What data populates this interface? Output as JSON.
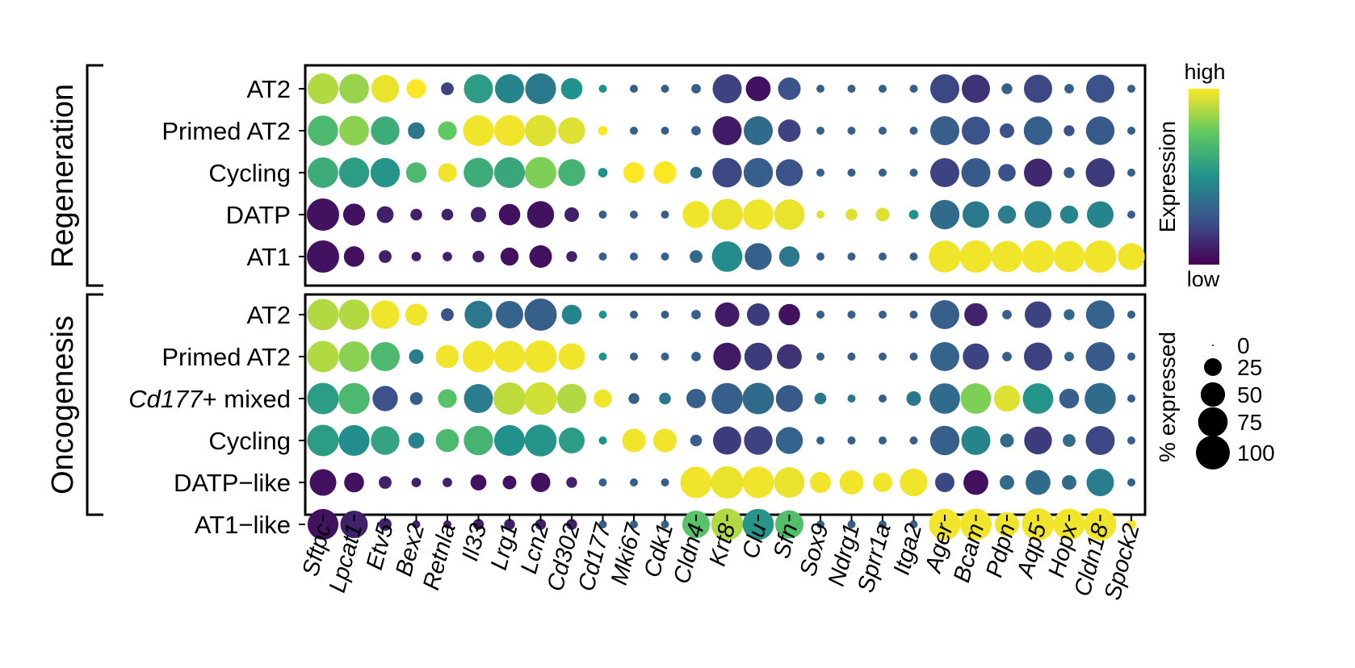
{
  "chart_data": {
    "type": "dot",
    "genes": [
      "Sftpc",
      "Lpcat1",
      "Etv5",
      "Bex2",
      "Retnla",
      "Il33",
      "Lrg1",
      "Lcn2",
      "Cd302",
      "Cd177",
      "Mki67",
      "Cdk1",
      "Cldn4",
      "Krt8",
      "Clu",
      "Sfn",
      "Sox9",
      "Ndrg1",
      "Sprr1a",
      "Itga2",
      "Ager",
      "Bcam",
      "Pdpn",
      "Aqp5",
      "Hopx",
      "Cldn18",
      "Spock2"
    ],
    "panels": [
      {
        "group": "Regeneration",
        "rows": [
          {
            "label": "AT2",
            "expr": [
              0.88,
              0.84,
              0.97,
              1,
              0.2,
              0.55,
              0.45,
              0.4,
              0.5,
              0.5,
              0.3,
              0.3,
              0.3,
              0.2,
              0.05,
              0.25,
              0.3,
              0.3,
              0.3,
              0.3,
              0.22,
              0.15,
              0.3,
              0.22,
              0.3,
              0.25,
              0.3
            ],
            "pct": [
              82,
              76,
              65,
              30,
              12,
              72,
              72,
              82,
              38,
              4,
              4,
              4,
              6,
              72,
              52,
              42,
              4,
              4,
              4,
              4,
              72,
              68,
              8,
              68,
              6,
              68,
              4
            ]
          },
          {
            "label": "Primed AT2",
            "expr": [
              0.68,
              0.82,
              0.62,
              0.4,
              0.75,
              0.98,
              0.98,
              0.95,
              0.95,
              1,
              0.3,
              0.3,
              0.3,
              0.08,
              0.35,
              0.2,
              0.3,
              0.3,
              0.3,
              0.3,
              0.3,
              0.25,
              0.25,
              0.3,
              0.25,
              0.28,
              0.3
            ],
            "pct": [
              78,
              76,
              70,
              22,
              28,
              82,
              82,
              86,
              62,
              6,
              4,
              4,
              6,
              72,
              72,
              42,
              4,
              4,
              4,
              4,
              72,
              68,
              16,
              70,
              8,
              70,
              4
            ]
          },
          {
            "label": "Cycling",
            "expr": [
              0.62,
              0.55,
              0.52,
              0.68,
              0.98,
              0.62,
              0.6,
              0.8,
              0.65,
              0.5,
              1,
              1,
              0.35,
              0.22,
              0.3,
              0.25,
              0.3,
              0.3,
              0.3,
              0.3,
              0.2,
              0.28,
              0.25,
              0.12,
              0.3,
              0.18,
              0.3
            ],
            "pct": [
              80,
              78,
              74,
              34,
              28,
              76,
              82,
              86,
              62,
              6,
              36,
              42,
              10,
              74,
              74,
              62,
              4,
              4,
              4,
              4,
              72,
              72,
              24,
              68,
              8,
              72,
              4
            ]
          },
          {
            "label": "DATP",
            "expr": [
              0.05,
              0.05,
              0.1,
              0.1,
              0.1,
              0.1,
              0.05,
              0.05,
              0.1,
              0.3,
              0.3,
              0.3,
              0.98,
              0.97,
              0.98,
              0.97,
              0.95,
              0.95,
              0.95,
              0.5,
              0.35,
              0.4,
              0.42,
              0.42,
              0.45,
              0.45,
              0.3
            ],
            "pct": [
              90,
              40,
              22,
              10,
              10,
              18,
              38,
              62,
              16,
              4,
              4,
              4,
              62,
              86,
              80,
              80,
              4,
              10,
              14,
              6,
              74,
              60,
              26,
              62,
              26,
              60,
              4
            ]
          },
          {
            "label": "AT1",
            "expr": [
              0.05,
              0.05,
              0.1,
              0.1,
              0.1,
              0.1,
              0.05,
              0.05,
              0.1,
              0.3,
              0.3,
              0.3,
              0.35,
              0.48,
              0.3,
              0.4,
              0.3,
              0.3,
              0.3,
              0.3,
              0.98,
              0.98,
              0.98,
              0.98,
              0.98,
              0.98,
              0.98
            ],
            "pct": [
              90,
              34,
              12,
              6,
              6,
              10,
              26,
              42,
              8,
              4,
              4,
              4,
              12,
              80,
              62,
              34,
              4,
              4,
              4,
              4,
              88,
              90,
              84,
              90,
              84,
              90,
              62
            ]
          }
        ]
      },
      {
        "group": "Oncogenesis",
        "rows": [
          {
            "label": "AT2",
            "expr": [
              0.88,
              0.88,
              0.98,
              0.98,
              0.25,
              0.4,
              0.32,
              0.3,
              0.45,
              0.5,
              0.3,
              0.3,
              0.3,
              0.08,
              0.18,
              0.05,
              0.3,
              0.3,
              0.3,
              0.3,
              0.3,
              0.1,
              0.3,
              0.2,
              0.35,
              0.32,
              0.3
            ],
            "pct": [
              86,
              80,
              70,
              40,
              12,
              66,
              64,
              90,
              32,
              4,
              4,
              4,
              6,
              50,
              42,
              38,
              4,
              4,
              4,
              4,
              72,
              44,
              6,
              60,
              8,
              70,
              4
            ]
          },
          {
            "label": "Primed AT2",
            "expr": [
              0.88,
              0.82,
              0.68,
              0.42,
              0.98,
              0.98,
              0.98,
              0.98,
              0.98,
              0.5,
              0.3,
              0.3,
              0.3,
              0.08,
              0.18,
              0.15,
              0.3,
              0.3,
              0.3,
              0.3,
              0.32,
              0.2,
              0.3,
              0.2,
              0.35,
              0.28,
              0.3
            ],
            "pct": [
              86,
              80,
              72,
              16,
              44,
              86,
              86,
              90,
              60,
              4,
              4,
              4,
              6,
              66,
              66,
              52,
              4,
              4,
              4,
              4,
              72,
              58,
              6,
              68,
              6,
              72,
              4
            ]
          },
          {
            "label": "Cd177+ mixed",
            "expr": [
              0.55,
              0.68,
              0.25,
              0.3,
              0.72,
              0.42,
              0.9,
              0.93,
              0.88,
              0.98,
              0.3,
              0.4,
              0.3,
              0.3,
              0.35,
              0.28,
              0.4,
              0.4,
              0.3,
              0.4,
              0.35,
              0.8,
              0.95,
              0.52,
              0.3,
              0.35,
              0.3
            ],
            "pct": [
              86,
              84,
              54,
              12,
              28,
              72,
              90,
              92,
              74,
              26,
              8,
              10,
              30,
              84,
              86,
              62,
              10,
              4,
              4,
              16,
              80,
              80,
              58,
              80,
              32,
              84,
              4
            ]
          },
          {
            "label": "Cycling",
            "expr": [
              0.55,
              0.48,
              0.58,
              0.45,
              0.68,
              0.65,
              0.5,
              0.52,
              0.55,
              0.5,
              0.98,
              0.98,
              0.3,
              0.18,
              0.2,
              0.32,
              0.3,
              0.3,
              0.3,
              0.3,
              0.3,
              0.45,
              0.35,
              0.18,
              0.35,
              0.22,
              0.3
            ],
            "pct": [
              86,
              82,
              70,
              20,
              44,
              74,
              82,
              88,
              56,
              4,
              46,
              46,
              10,
              68,
              70,
              62,
              4,
              4,
              4,
              4,
              74,
              72,
              14,
              66,
              12,
              72,
              4
            ]
          },
          {
            "label": "DATP−like",
            "expr": [
              0.05,
              0.05,
              0.1,
              0.1,
              0.1,
              0.05,
              0.05,
              0.05,
              0.1,
              0.3,
              0.3,
              0.3,
              0.98,
              0.97,
              0.98,
              0.97,
              0.98,
              0.98,
              0.98,
              0.98,
              0.22,
              0.05,
              0.35,
              0.35,
              0.35,
              0.42,
              0.3
            ],
            "pct": [
              60,
              32,
              12,
              6,
              6,
              20,
              14,
              30,
              8,
              4,
              4,
              4,
              86,
              90,
              86,
              80,
              36,
              48,
              30,
              66,
              30,
              52,
              16,
              52,
              16,
              64,
              4
            ]
          },
          {
            "label": "AT1−like",
            "expr": [
              0.05,
              0.1,
              0.1,
              0.1,
              0.1,
              0.1,
              0.1,
              0.1,
              0.1,
              0.3,
              0.3,
              0.3,
              0.72,
              0.88,
              0.52,
              0.7,
              0.3,
              0.3,
              0.3,
              0.3,
              0.98,
              0.98,
              0.98,
              0.98,
              0.98,
              0.98,
              0.98
            ],
            "pct": [
              82,
              64,
              12,
              4,
              4,
              8,
              8,
              8,
              8,
              4,
              4,
              4,
              64,
              88,
              84,
              68,
              4,
              4,
              4,
              4,
              86,
              86,
              50,
              90,
              86,
              90,
              6
            ]
          }
        ]
      }
    ],
    "colorbar": {
      "high_label": "high",
      "low_label": "low",
      "title": "Expression"
    },
    "size_legend": {
      "title": "% expressed",
      "levels": [
        0,
        25,
        50,
        75,
        100
      ],
      "labels": [
        "0",
        "25",
        "50",
        "75",
        "100"
      ]
    },
    "colormap": [
      "#440154",
      "#3b528b",
      "#21918c",
      "#5ec962",
      "#fde725"
    ]
  }
}
